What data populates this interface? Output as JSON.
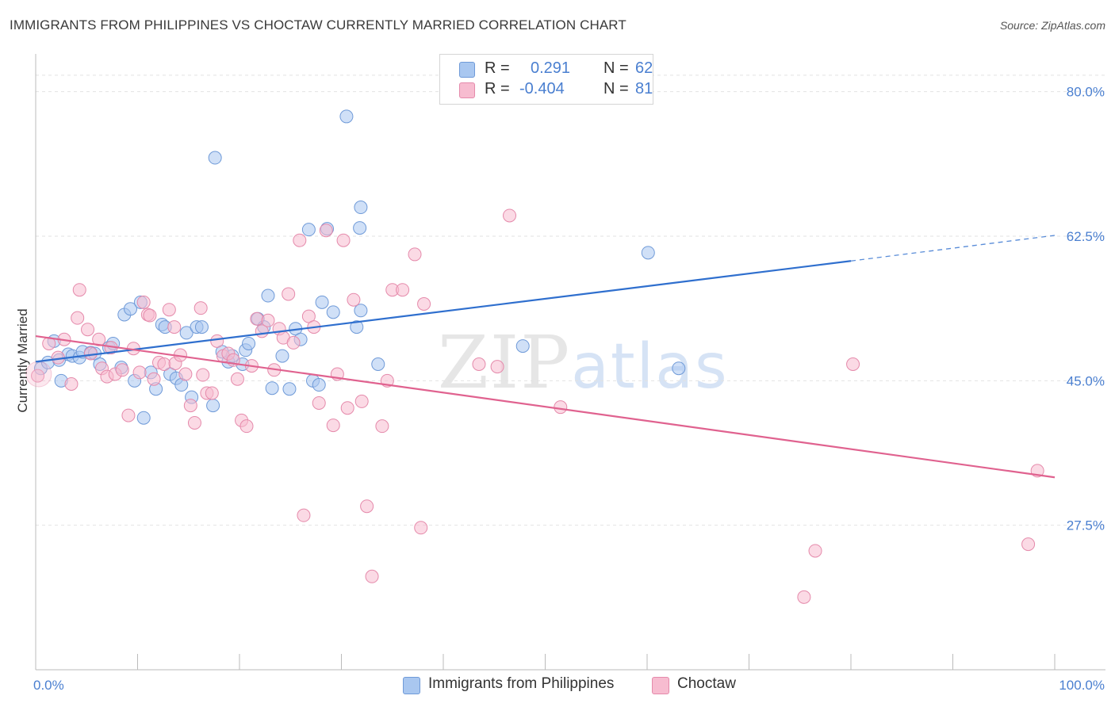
{
  "title": "IMMIGRANTS FROM PHILIPPINES VS CHOCTAW CURRENTLY MARRIED CORRELATION CHART",
  "source": "Source: ZipAtlas.com",
  "watermark": {
    "zip": "ZIP",
    "atlas": "atlas"
  },
  "legend_top": [
    {
      "r_label": "R =",
      "r_value": "0.291",
      "n_label": "N =",
      "n_value": "62",
      "color": "#a9c7f0",
      "border": "#6f9ad8"
    },
    {
      "r_label": "R =",
      "r_value": "-0.404",
      "n_label": "N =",
      "n_value": "81",
      "color": "#f7bcd0",
      "border": "#e58aab"
    }
  ],
  "legend_bottom": [
    {
      "label": "Immigrants from Philippines",
      "color": "#a9c7f0",
      "border": "#6f9ad8"
    },
    {
      "label": "Choctaw",
      "color": "#f7bcd0",
      "border": "#e58aab"
    }
  ],
  "chart_data": {
    "type": "scatter",
    "xlabel": "",
    "ylabel": "Currently Married",
    "xlim": [
      0,
      100
    ],
    "ylim": [
      10,
      84
    ],
    "x_tick_labels": [
      {
        "value": 0,
        "label": "0.0%"
      },
      {
        "value": 100,
        "label": "100.0%"
      }
    ],
    "y_tick_labels": [
      {
        "value": 80,
        "label": "80.0%"
      },
      {
        "value": 62.5,
        "label": "62.5%"
      },
      {
        "value": 45,
        "label": "45.0%"
      },
      {
        "value": 27.5,
        "label": "27.5%"
      }
    ],
    "grid": true,
    "legend_position": "top-center",
    "series": [
      {
        "name": "Immigrants from Philippines",
        "color": "#6f9ad8",
        "fill": "#a9c7f0",
        "trend": {
          "x0": 0,
          "y0": 47.3,
          "x1": 80,
          "y1": 59.5,
          "dashed_to": 100,
          "dashed_y": 62.6,
          "color": "#2f6fce"
        },
        "points": [
          [
            0.5,
            46.5
          ],
          [
            1.2,
            47.2
          ],
          [
            1.8,
            49.8
          ],
          [
            2.3,
            47.5
          ],
          [
            2.5,
            45.0
          ],
          [
            3.2,
            48.2
          ],
          [
            3.6,
            48.0
          ],
          [
            4.3,
            47.8
          ],
          [
            4.6,
            48.5
          ],
          [
            5.4,
            48.4
          ],
          [
            5.8,
            48.3
          ],
          [
            6.3,
            47.0
          ],
          [
            7.2,
            49.0
          ],
          [
            7.6,
            49.5
          ],
          [
            8.4,
            46.6
          ],
          [
            8.7,
            53.0
          ],
          [
            9.3,
            53.7
          ],
          [
            9.7,
            45.0
          ],
          [
            10.3,
            54.5
          ],
          [
            10.6,
            40.5
          ],
          [
            11.3,
            46.0
          ],
          [
            11.8,
            44.0
          ],
          [
            12.4,
            51.8
          ],
          [
            12.7,
            51.5
          ],
          [
            13.2,
            45.8
          ],
          [
            13.8,
            45.3
          ],
          [
            14.3,
            44.5
          ],
          [
            14.8,
            50.8
          ],
          [
            15.3,
            43.0
          ],
          [
            15.8,
            51.5
          ],
          [
            16.3,
            51.5
          ],
          [
            17.4,
            42.0
          ],
          [
            17.6,
            72.0
          ],
          [
            18.3,
            48.5
          ],
          [
            18.9,
            47.3
          ],
          [
            19.3,
            48.0
          ],
          [
            20.3,
            47.0
          ],
          [
            20.6,
            48.7
          ],
          [
            20.9,
            49.5
          ],
          [
            21.8,
            52.5
          ],
          [
            22.4,
            51.5
          ],
          [
            22.8,
            55.3
          ],
          [
            23.2,
            44.1
          ],
          [
            24.2,
            48.0
          ],
          [
            24.9,
            44.0
          ],
          [
            25.5,
            51.3
          ],
          [
            26.0,
            50.0
          ],
          [
            26.8,
            63.3
          ],
          [
            27.2,
            45.0
          ],
          [
            27.8,
            44.5
          ],
          [
            28.6,
            63.4
          ],
          [
            29.2,
            53.3
          ],
          [
            30.5,
            77.0
          ],
          [
            31.5,
            51.5
          ],
          [
            31.8,
            63.5
          ],
          [
            31.9,
            53.5
          ],
          [
            33.6,
            47.0
          ],
          [
            47.8,
            49.2
          ],
          [
            31.9,
            66.0
          ],
          [
            60.1,
            60.5
          ],
          [
            63.1,
            46.5
          ],
          [
            28.1,
            54.5
          ]
        ]
      },
      {
        "name": "Choctaw",
        "color": "#e58aab",
        "fill": "#f7bcd0",
        "trend": {
          "x0": 0,
          "y0": 50.4,
          "x1": 100,
          "y1": 33.3,
          "color": "#e0628f"
        },
        "points": [
          [
            0.2,
            45.6
          ],
          [
            1.3,
            49.5
          ],
          [
            2.2,
            47.8
          ],
          [
            2.8,
            50.0
          ],
          [
            3.5,
            44.6
          ],
          [
            4.1,
            52.6
          ],
          [
            4.3,
            56.0
          ],
          [
            5.1,
            51.2
          ],
          [
            5.4,
            48.3
          ],
          [
            6.2,
            50.0
          ],
          [
            6.5,
            46.5
          ],
          [
            7.0,
            45.5
          ],
          [
            7.4,
            49.0
          ],
          [
            7.8,
            45.8
          ],
          [
            8.5,
            46.3
          ],
          [
            9.1,
            40.8
          ],
          [
            9.6,
            48.9
          ],
          [
            10.2,
            46.0
          ],
          [
            10.6,
            54.5
          ],
          [
            11.0,
            53.0
          ],
          [
            11.6,
            45.2
          ],
          [
            12.1,
            47.2
          ],
          [
            12.6,
            47.0
          ],
          [
            13.1,
            53.6
          ],
          [
            13.7,
            47.1
          ],
          [
            14.2,
            48.1
          ],
          [
            14.7,
            45.8
          ],
          [
            15.2,
            42.0
          ],
          [
            15.6,
            39.9
          ],
          [
            16.2,
            53.8
          ],
          [
            16.8,
            43.5
          ],
          [
            17.3,
            43.5
          ],
          [
            17.8,
            49.8
          ],
          [
            18.4,
            48.0
          ],
          [
            18.9,
            48.3
          ],
          [
            19.4,
            47.5
          ],
          [
            19.8,
            45.2
          ],
          [
            20.2,
            40.2
          ],
          [
            20.7,
            39.5
          ],
          [
            21.2,
            46.8
          ],
          [
            21.7,
            52.5
          ],
          [
            22.2,
            51.0
          ],
          [
            22.8,
            52.3
          ],
          [
            23.4,
            46.3
          ],
          [
            23.9,
            51.3
          ],
          [
            24.3,
            50.2
          ],
          [
            24.8,
            55.5
          ],
          [
            25.3,
            49.6
          ],
          [
            25.9,
            62.0
          ],
          [
            26.3,
            28.7
          ],
          [
            26.8,
            52.8
          ],
          [
            27.3,
            51.5
          ],
          [
            27.8,
            42.3
          ],
          [
            28.5,
            63.2
          ],
          [
            29.2,
            39.6
          ],
          [
            29.6,
            45.8
          ],
          [
            30.2,
            62.0
          ],
          [
            30.6,
            41.7
          ],
          [
            31.2,
            54.8
          ],
          [
            32.0,
            42.5
          ],
          [
            32.5,
            29.8
          ],
          [
            33.0,
            21.3
          ],
          [
            34.5,
            45.0
          ],
          [
            34.0,
            39.5
          ],
          [
            35.0,
            56.0
          ],
          [
            36.0,
            56.0
          ],
          [
            37.8,
            27.2
          ],
          [
            37.2,
            60.3
          ],
          [
            38.1,
            54.3
          ],
          [
            43.5,
            47.0
          ],
          [
            45.3,
            46.7
          ],
          [
            46.5,
            65.0
          ],
          [
            51.5,
            41.8
          ],
          [
            76.5,
            24.4
          ],
          [
            80.2,
            47.0
          ],
          [
            97.4,
            25.2
          ],
          [
            98.3,
            34.1
          ],
          [
            75.4,
            18.8
          ],
          [
            16.4,
            45.7
          ],
          [
            13.6,
            51.5
          ],
          [
            11.2,
            52.9
          ]
        ]
      }
    ]
  }
}
